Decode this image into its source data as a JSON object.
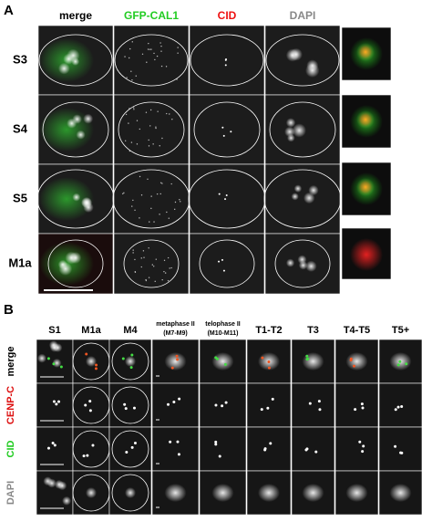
{
  "panel_a": {
    "label": "A",
    "columns": [
      "merge",
      "GFP-CAL1",
      "CID",
      "DAPI"
    ],
    "rows": [
      "S3",
      "S4",
      "S5",
      "M1a"
    ]
  },
  "panel_b": {
    "label": "B",
    "columns": [
      [
        "S1"
      ],
      [
        "M1a"
      ],
      [
        "M4"
      ],
      [
        "metaphase II",
        "(M7-M9)"
      ],
      [
        "telophase II",
        "(M10-M11)"
      ],
      [
        "T1-T2"
      ],
      [
        "T3"
      ],
      [
        "T4-T5"
      ],
      [
        "T5+"
      ]
    ],
    "rows": [
      "merge",
      "CENP-C",
      "CID",
      "DAPI"
    ]
  }
}
